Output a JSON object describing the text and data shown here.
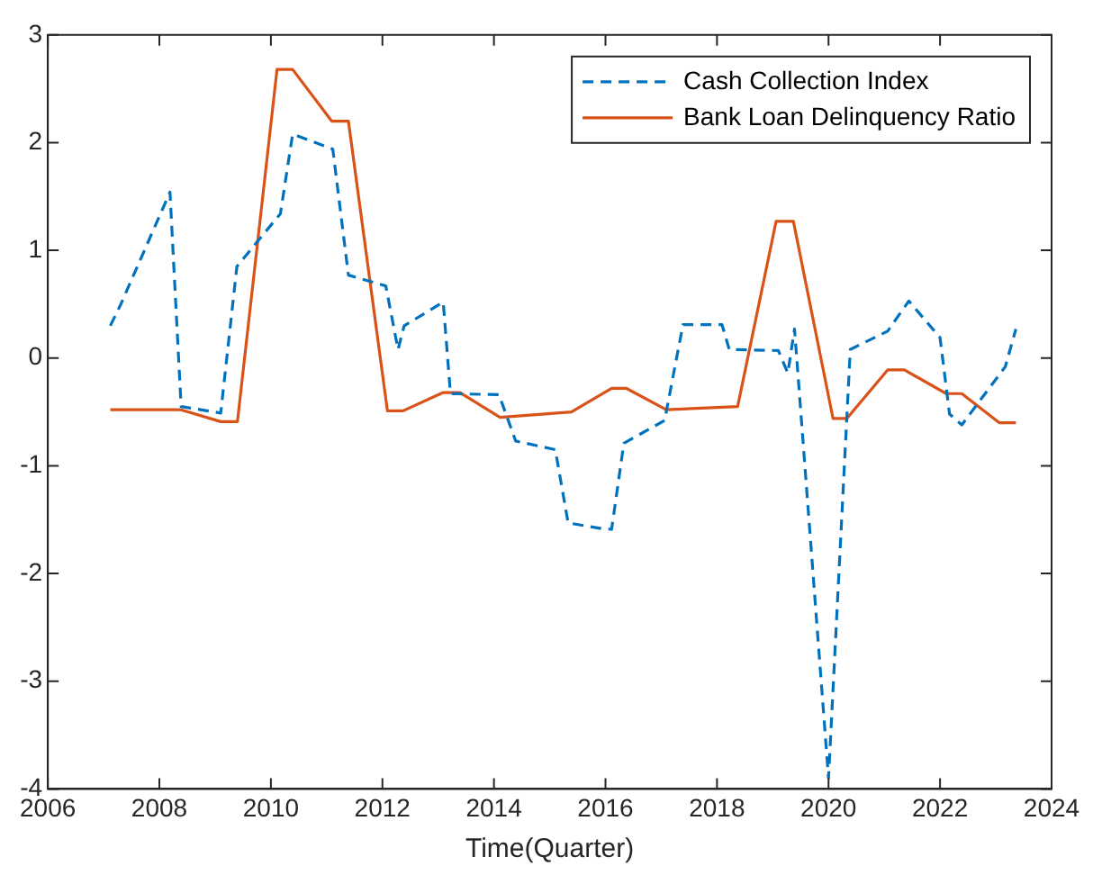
{
  "chart_data": {
    "type": "line",
    "xlabel": "Time(Quarter)",
    "xlim": [
      2006,
      2024
    ],
    "xticks": [
      2006,
      2008,
      2010,
      2012,
      2014,
      2016,
      2018,
      2020,
      2022,
      2024
    ],
    "ylim": [
      -4,
      3
    ],
    "yticks": [
      -4,
      -3,
      -2,
      -1,
      0,
      1,
      2,
      3
    ],
    "grid": false,
    "legend": "top right",
    "marker": "none",
    "series": [
      {
        "name": "Cash Collection Index",
        "color": "#0072bd",
        "line_style": "dashed",
        "x": [
          2007.12,
          2007.3,
          2008.19,
          2008.39,
          2009.1,
          2009.39,
          2010.17,
          2010.39,
          2011.11,
          2011.39,
          2012.06,
          2012.28,
          2012.39,
          2013.09,
          2013.22,
          2014.09,
          2014.39,
          2015.1,
          2015.33,
          2015.9,
          2016.11,
          2016.33,
          2017.06,
          2017.39,
          2018.09,
          2018.22,
          2019.1,
          2019.27,
          2019.39,
          2020.0,
          2020.39,
          2021.06,
          2021.44,
          2022.0,
          2022.17,
          2022.39,
          2023.17,
          2023.36
        ],
        "values": [
          0.3,
          0.49,
          1.54,
          -0.45,
          -0.51,
          0.85,
          1.34,
          2.08,
          1.94,
          0.77,
          0.67,
          0.08,
          0.3,
          0.52,
          -0.33,
          -0.34,
          -0.77,
          -0.85,
          -1.53,
          -1.58,
          -1.59,
          -0.79,
          -0.58,
          0.31,
          0.31,
          0.08,
          0.07,
          -0.14,
          0.27,
          -3.9,
          0.08,
          0.25,
          0.53,
          0.19,
          -0.52,
          -0.62,
          -0.08,
          0.27
        ]
      },
      {
        "name": "Bank Loan Delinquency Ratio",
        "color": "#d95319",
        "line_style": "solid",
        "x": [
          2007.12,
          2008.39,
          2009.1,
          2009.4,
          2010.11,
          2010.39,
          2011.09,
          2011.39,
          2012.09,
          2012.37,
          2013.09,
          2013.39,
          2014.11,
          2015.39,
          2016.11,
          2016.37,
          2017.09,
          2018.37,
          2019.06,
          2019.37,
          2020.08,
          2020.33,
          2021.06,
          2021.36,
          2022.11,
          2022.39,
          2023.06,
          2023.36
        ],
        "values": [
          -0.48,
          -0.48,
          -0.59,
          -0.59,
          2.68,
          2.68,
          2.2,
          2.2,
          -0.49,
          -0.49,
          -0.32,
          -0.32,
          -0.55,
          -0.5,
          -0.28,
          -0.28,
          -0.48,
          -0.45,
          1.27,
          1.27,
          -0.56,
          -0.56,
          -0.11,
          -0.11,
          -0.33,
          -0.33,
          -0.6,
          -0.6
        ]
      }
    ]
  }
}
